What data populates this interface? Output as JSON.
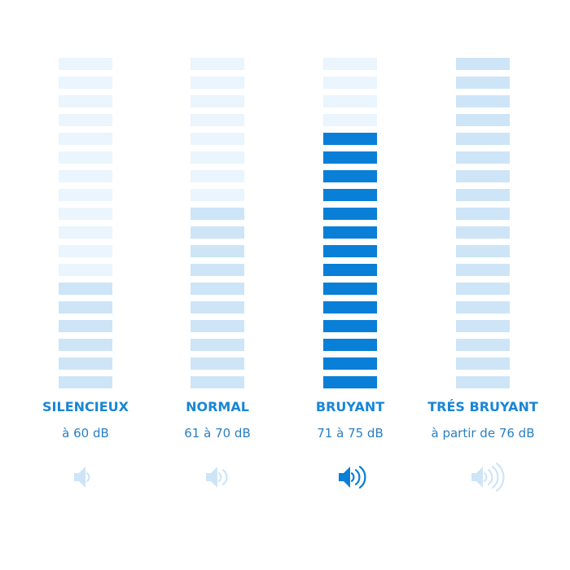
{
  "bars": 18,
  "columns": [
    {
      "title": "SILENCIEUX",
      "range": "à 60 dB",
      "level": 6,
      "color": "#cde5f7"
    },
    {
      "title": "NORMAL",
      "range": "61 à 70 dB",
      "level": 10,
      "color": "#cde5f7"
    },
    {
      "title": "BRUYANT",
      "range": "71 à 75 dB",
      "level": 14,
      "color": "#0a7fd7"
    },
    {
      "title": "TRÉS BRUYANT",
      "range": "à partir de 76 dB",
      "level": 18,
      "color": "#cde5f7"
    }
  ]
}
